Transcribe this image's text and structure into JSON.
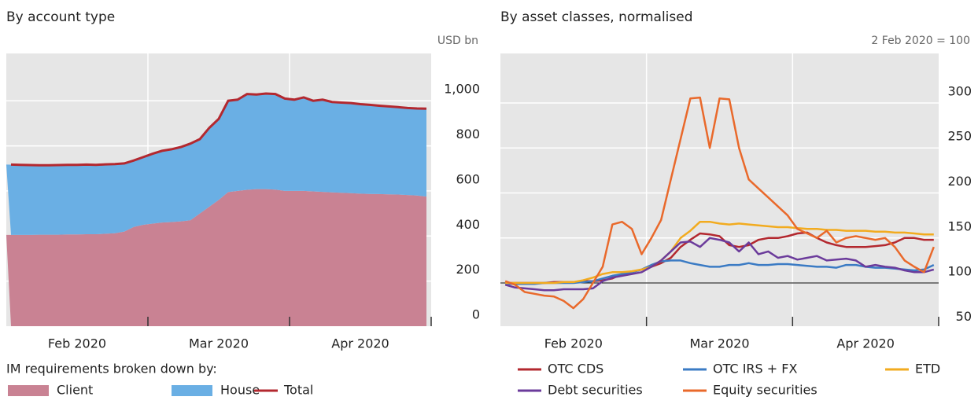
{
  "chart_data": [
    {
      "type": "area",
      "title": "By account type",
      "unit": "USD bn",
      "categories": [
        null,
        null,
        null,
        null,
        null,
        null,
        null,
        "Feb 2020",
        null,
        null,
        null,
        null,
        null,
        null,
        null,
        null,
        null,
        null,
        null,
        null,
        null,
        null,
        "Mar 2020",
        null,
        null,
        null,
        null,
        null,
        null,
        null,
        null,
        null,
        null,
        null,
        null,
        null,
        null,
        "Apr 2020",
        null,
        null,
        null,
        null,
        null,
        null,
        null
      ],
      "series": [
        {
          "name": "Client",
          "color": "#c98293",
          "style": "area",
          "values": [
            405,
            405,
            405,
            406,
            406,
            406,
            407,
            407,
            408,
            408,
            410,
            412,
            420,
            440,
            450,
            455,
            460,
            462,
            465,
            470,
            500,
            530,
            560,
            595,
            600,
            605,
            608,
            608,
            606,
            600,
            600,
            600,
            598,
            596,
            594,
            592,
            590,
            588,
            587,
            586,
            585,
            584,
            582,
            580,
            575
          ]
        },
        {
          "name": "House",
          "color": "#6aafe4",
          "style": "area",
          "values": [
            312,
            311,
            310,
            308,
            308,
            309,
            309,
            309,
            309,
            308,
            308,
            307,
            302,
            295,
            300,
            310,
            318,
            323,
            330,
            340,
            330,
            350,
            360,
            405,
            405,
            425,
            420,
            424,
            424,
            410,
            405,
            415,
            402,
            409,
            401,
            400,
            400,
            397,
            395,
            392,
            390,
            388,
            386,
            386,
            390
          ]
        },
        {
          "name": "Total",
          "color": "#b3282f",
          "style": "line",
          "values": [
            717,
            716,
            715,
            714,
            714,
            715,
            716,
            716,
            717,
            716,
            718,
            719,
            722,
            735,
            750,
            765,
            778,
            785,
            795,
            810,
            830,
            880,
            920,
            1000,
            1005,
            1030,
            1028,
            1032,
            1030,
            1010,
            1005,
            1015,
            1000,
            1005,
            995,
            992,
            990,
            985,
            982,
            978,
            975,
            972,
            968,
            966,
            965
          ]
        }
      ],
      "ylim": [
        0,
        1210
      ],
      "yticks": [
        0,
        200,
        400,
        600,
        800,
        {
          "value": 1000,
          "label": "1,000"
        }
      ],
      "grid": true,
      "legend_title": "IM requirements broken down by:"
    },
    {
      "type": "line",
      "title": "By asset classes, normalised",
      "unit": "2 Feb 2020 = 100",
      "categories": [
        null,
        null,
        null,
        null,
        null,
        null,
        null,
        "Feb 2020",
        null,
        null,
        null,
        null,
        null,
        null,
        null,
        null,
        null,
        null,
        null,
        null,
        null,
        null,
        "Mar 2020",
        null,
        null,
        null,
        null,
        null,
        null,
        null,
        null,
        null,
        null,
        null,
        null,
        null,
        null,
        "Apr 2020",
        null,
        null,
        null,
        null,
        null,
        null,
        null
      ],
      "series": [
        {
          "name": "OTC CDS",
          "color": "#b3282f",
          "values": [
            100,
            100,
            100,
            100,
            100,
            101,
            101,
            101,
            102,
            102,
            103,
            105,
            110,
            112,
            115,
            118,
            122,
            128,
            140,
            148,
            155,
            154,
            152,
            142,
            140,
            142,
            148,
            150,
            150,
            152,
            155,
            156,
            150,
            145,
            142,
            140,
            140,
            140,
            141,
            142,
            145,
            150,
            150,
            148,
            148
          ]
        },
        {
          "name": "OTC IRS + FX",
          "color": "#3b7bc4",
          "values": [
            99,
            99,
            99,
            99,
            100,
            100,
            100,
            100,
            101,
            102,
            105,
            108,
            110,
            112,
            115,
            120,
            124,
            125,
            125,
            122,
            120,
            118,
            118,
            120,
            120,
            122,
            120,
            120,
            121,
            121,
            120,
            119,
            118,
            118,
            117,
            120,
            120,
            118,
            117,
            117,
            116,
            115,
            114,
            115,
            120
          ]
        },
        {
          "name": "ETD",
          "color": "#f2ab1f",
          "values": [
            100,
            100,
            100,
            100,
            100,
            100,
            101,
            101,
            103,
            106,
            110,
            112,
            112,
            113,
            115,
            118,
            125,
            135,
            150,
            158,
            168,
            168,
            166,
            165,
            166,
            165,
            164,
            163,
            162,
            162,
            161,
            160,
            160,
            159,
            159,
            158,
            158,
            158,
            157,
            157,
            156,
            156,
            155,
            154,
            154
          ]
        },
        {
          "name": "Debt securities",
          "color": "#6b3b9b",
          "values": [
            98,
            95,
            94,
            93,
            92,
            92,
            93,
            93,
            93,
            94,
            102,
            106,
            108,
            110,
            112,
            118,
            125,
            135,
            145,
            146,
            140,
            150,
            148,
            145,
            135,
            145,
            132,
            135,
            128,
            130,
            126,
            128,
            130,
            125,
            126,
            127,
            125,
            118,
            120,
            118,
            117,
            114,
            112,
            112,
            115
          ]
        },
        {
          "name": "Equity securities",
          "color": "#e9692b",
          "values": [
            102,
            98,
            90,
            88,
            86,
            85,
            80,
            72,
            82,
            100,
            118,
            165,
            168,
            160,
            132,
            150,
            170,
            215,
            260,
            305,
            306,
            250,
            305,
            304,
            250,
            215,
            205,
            195,
            185,
            175,
            160,
            155,
            150,
            158,
            145,
            150,
            152,
            150,
            148,
            150,
            140,
            125,
            118,
            112,
            140
          ]
        }
      ],
      "ylim": [
        52,
        355
      ],
      "yticks": [
        50,
        100,
        150,
        200,
        250,
        300
      ],
      "grid": true,
      "hline": 100
    }
  ]
}
